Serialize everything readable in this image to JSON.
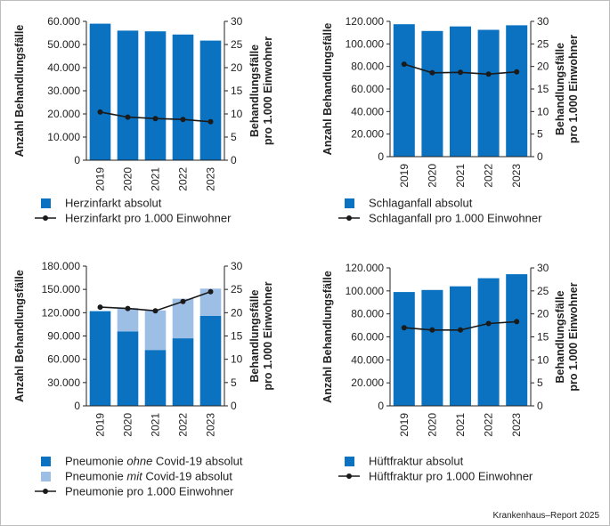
{
  "credit": "Krankenhaus–Report 2025",
  "colors": {
    "bar": "#0a72c0",
    "bar_light": "#9dbfe6",
    "line": "#1a1a1a",
    "axis": "#222222"
  },
  "chart_data": [
    {
      "type": "bar",
      "title": "",
      "categories": [
        "2019",
        "2020",
        "2021",
        "2022",
        "2023"
      ],
      "ylabel": "Anzahl Behandlungsfälle",
      "y2label_lines": [
        "Behandlungsfälle",
        "pro 1.000 Einwohner"
      ],
      "ylim": [
        0,
        60000
      ],
      "y_ticks": [
        "0",
        "10.000",
        "20.000",
        "30.000",
        "40.000",
        "50.000",
        "60.000"
      ],
      "y2lim": [
        0,
        30
      ],
      "y2_ticks": [
        "0",
        "5",
        "10",
        "15",
        "20",
        "25",
        "30"
      ],
      "series": [
        {
          "name": "Herzinfarkt absolut",
          "values": [
            59000,
            56000,
            55700,
            54300,
            51700
          ]
        },
        {
          "name": "Herzinfarkt pro 1.000 Einwohner",
          "axis": "right",
          "kind": "line",
          "values": [
            10.4,
            9.3,
            9.0,
            8.8,
            8.3
          ]
        }
      ],
      "legend": [
        {
          "type": "box",
          "color": "#0a72c0",
          "parts": [
            {
              "text": "Herzinfarkt absolut"
            }
          ]
        },
        {
          "type": "line",
          "parts": [
            {
              "text": "Herzinfarkt pro 1.000 Einwohner"
            }
          ]
        }
      ]
    },
    {
      "type": "bar",
      "title": "",
      "categories": [
        "2019",
        "2020",
        "2021",
        "2022",
        "2023"
      ],
      "ylabel": "Anzahl Behandlungsfälle",
      "y2label_lines": [
        "Behandlungsfälle",
        "pro 1.000 Einwohner"
      ],
      "ylim": [
        0,
        120000
      ],
      "y_ticks": [
        "0",
        "20.000",
        "40.000",
        "60.000",
        "80.000",
        "100.000",
        "120.000"
      ],
      "y2lim": [
        0,
        30
      ],
      "y2_ticks": [
        "0",
        "5",
        "10",
        "15",
        "20",
        "25",
        "30"
      ],
      "series": [
        {
          "name": "Schlaganfall absolut",
          "values": [
            117500,
            111500,
            115500,
            112500,
            116500
          ]
        },
        {
          "name": "Schlaganfall pro 1.000 Einwohner",
          "axis": "right",
          "kind": "line",
          "values": [
            20.5,
            18.6,
            18.7,
            18.3,
            18.8
          ]
        }
      ],
      "legend": [
        {
          "type": "box",
          "color": "#0a72c0",
          "parts": [
            {
              "text": "Schlaganfall absolut"
            }
          ]
        },
        {
          "type": "line",
          "parts": [
            {
              "text": "Schlaganfall pro 1.000 Einwohner"
            }
          ]
        }
      ]
    },
    {
      "type": "bar",
      "stacked": true,
      "title": "",
      "categories": [
        "2019",
        "2020",
        "2021",
        "2022",
        "2023"
      ],
      "ylabel": "Anzahl Behandlungsfälle",
      "y2label_lines": [
        "Behandlungsfälle",
        "pro 1.000 Einwohner"
      ],
      "ylim": [
        0,
        180000
      ],
      "y_ticks": [
        "0",
        "30.000",
        "60.000",
        "90.000",
        "120.000",
        "150.000",
        "180.000"
      ],
      "y2lim": [
        0,
        30
      ],
      "y2_ticks": [
        "0",
        "5",
        "10",
        "15",
        "20",
        "25",
        "30"
      ],
      "series": [
        {
          "name": "Pneumonie ohne Covid-19 absolut",
          "values": [
            122000,
            96000,
            72000,
            87000,
            116000
          ]
        },
        {
          "name": "Pneumonie mit Covid-19 absolut",
          "values": [
            0,
            30000,
            51000,
            51000,
            35000
          ]
        },
        {
          "name": "Pneumonie pro 1.000 Einwohner",
          "axis": "right",
          "kind": "line",
          "values": [
            21.2,
            20.9,
            20.4,
            22.4,
            24.5
          ]
        }
      ],
      "legend": [
        {
          "type": "box",
          "color": "#0a72c0",
          "parts": [
            {
              "text": "Pneumonie "
            },
            {
              "text": "ohne",
              "italic": true
            },
            {
              "text": " Covid-19 absolut"
            }
          ]
        },
        {
          "type": "box",
          "color": "#9dbfe6",
          "parts": [
            {
              "text": "Pneumonie "
            },
            {
              "text": "mit",
              "italic": true
            },
            {
              "text": " Covid-19 absolut"
            }
          ]
        },
        {
          "type": "line",
          "parts": [
            {
              "text": "Pneumonie pro 1.000 Einwohner"
            }
          ]
        }
      ]
    },
    {
      "type": "bar",
      "title": "",
      "categories": [
        "2019",
        "2020",
        "2021",
        "2022",
        "2023"
      ],
      "ylabel": "Anzahl Behandlungsfälle",
      "y2label_lines": [
        "Behandlungsfälle",
        "pro 1.000 Einwohner"
      ],
      "ylim": [
        0,
        120000
      ],
      "y_ticks": [
        "0",
        "20.000",
        "40.000",
        "60.000",
        "80.000",
        "100.000",
        "120.000"
      ],
      "y2lim": [
        0,
        30
      ],
      "y2_ticks": [
        "0",
        "5",
        "10",
        "15",
        "20",
        "25",
        "30"
      ],
      "series": [
        {
          "name": "Hüftfraktur absolut",
          "values": [
            99000,
            100800,
            104000,
            111000,
            114500
          ]
        },
        {
          "name": "Hüftfraktur pro 1.000 Einwohner",
          "axis": "right",
          "kind": "line",
          "values": [
            17.0,
            16.5,
            16.5,
            17.9,
            18.3
          ]
        }
      ],
      "legend": [
        {
          "type": "box",
          "color": "#0a72c0",
          "parts": [
            {
              "text": "Hüftfraktur absolut"
            }
          ]
        },
        {
          "type": "line",
          "parts": [
            {
              "text": "Hüftfraktur pro 1.000 Einwohner"
            }
          ]
        }
      ]
    }
  ]
}
